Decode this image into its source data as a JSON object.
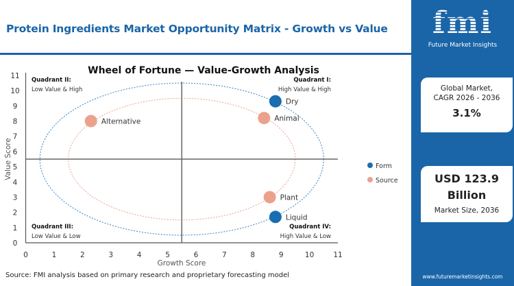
{
  "header": {
    "title": "Protein Ingredients Market Opportunity Matrix - Growth vs Value"
  },
  "chart_data": {
    "type": "scatter",
    "title": "Wheel of Fortune — Value-Growth Analysis",
    "xlabel": "Growth Score",
    "ylabel": "Value Score",
    "xlim": [
      0,
      11
    ],
    "ylim": [
      0,
      11
    ],
    "xticks": [
      "0",
      "1",
      "2",
      "3",
      "4",
      "5",
      "6",
      "7",
      "8",
      "9",
      "10",
      "11"
    ],
    "yticks": [
      "0",
      "1",
      "2",
      "3",
      "4",
      "5",
      "6",
      "7",
      "8",
      "9",
      "10",
      "11"
    ],
    "quadrant_lines": {
      "x": 5.5,
      "y": 5.5
    },
    "ellipses": [
      {
        "series": "Form",
        "cx": 5.5,
        "cy": 5.5,
        "rx": 5,
        "ry": 5,
        "color": "#2f7fbf"
      },
      {
        "series": "Source",
        "cx": 5.5,
        "cy": 5.5,
        "rx": 4,
        "ry": 4,
        "color": "#e9a08a"
      }
    ],
    "quadrants": [
      {
        "title": "Quadrant II:",
        "subtitle": "Low Value & High",
        "position": "top-left"
      },
      {
        "title": "Quadrant I:",
        "subtitle": "High Value & High",
        "position": "top-right"
      },
      {
        "title": "Quadrant III:",
        "subtitle": "Low Value & Low",
        "position": "bottom-left"
      },
      {
        "title": "Quadrant IV:",
        "subtitle": "High Value & Low",
        "position": "bottom-right"
      }
    ],
    "series": [
      {
        "name": "Form",
        "color": "#1a6db0",
        "points": [
          {
            "label": "Dry",
            "x": 8.8,
            "y": 9.3
          },
          {
            "label": "Liquid",
            "x": 8.8,
            "y": 1.7
          }
        ]
      },
      {
        "name": "Source",
        "color": "#eba28c",
        "points": [
          {
            "label": "Alternative",
            "x": 2.3,
            "y": 8.0
          },
          {
            "label": "Animal",
            "x": 8.4,
            "y": 8.2
          },
          {
            "label": "Plant",
            "x": 8.6,
            "y": 3.0
          }
        ]
      }
    ],
    "legend": "right"
  },
  "source": "Source: FMI analysis based on primary research and proprietary forecasting model",
  "sidebar": {
    "logo_text": "fmi",
    "logo_sub": "Future Market Insights",
    "card1": {
      "label1": "Global Market,",
      "label2": "CAGR 2026 - 2036",
      "value": "3.1%"
    },
    "card2": {
      "value1": "USD 123.9",
      "value2": "Billion",
      "label": "Market Size, 2036"
    },
    "url": "www.futuremarketinsights.com"
  }
}
